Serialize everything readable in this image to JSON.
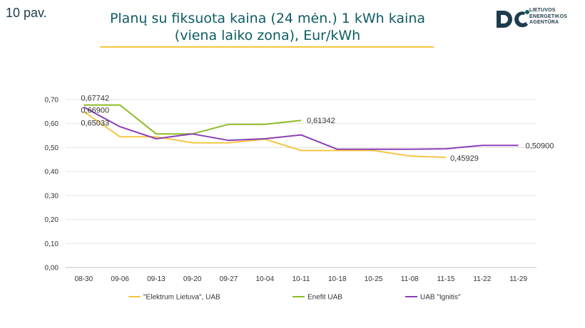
{
  "page_number": "10 pav.",
  "logo": {
    "line1": "LIETUVOS",
    "line2": "ENERGETIKOS",
    "line3": "AGENTŪRA",
    "color": "#1f3b4d"
  },
  "chart_data": {
    "type": "line",
    "title_line1": "Planų su fiksuota kaina (24 mėn.) 1 kWh kaina",
    "title_line2": "(viena laiko zona), Eur/kWh",
    "categories": [
      "08-30",
      "09-06",
      "09-13",
      "09-20",
      "09-27",
      "10-04",
      "10-11",
      "10-18",
      "10-25",
      "11-08",
      "11-15",
      "11-22",
      "11-29"
    ],
    "y_ticks": [
      "0,00",
      "0,10",
      "0,20",
      "0,30",
      "0,40",
      "0,50",
      "0,60",
      "0,70"
    ],
    "ylim": [
      0,
      0.7
    ],
    "grid": true,
    "legend_position": "bottom",
    "series": [
      {
        "name": "\"Elektrum Lietuva\", UAB",
        "color": "#f5c542",
        "values": [
          0.65033,
          0.545,
          0.545,
          0.52,
          0.52,
          0.535,
          0.488,
          0.488,
          0.488,
          0.465,
          0.45929,
          null,
          null
        ],
        "labels": [
          {
            "index": 0,
            "text": "0,65033"
          },
          {
            "index": 10,
            "text": "0,45929"
          }
        ]
      },
      {
        "name": "Enefit UAB",
        "color": "#8dbb25",
        "values": [
          0.67742,
          0.67742,
          0.557,
          0.557,
          0.597,
          0.597,
          0.61342,
          null,
          null,
          null,
          null,
          null,
          null
        ],
        "labels": [
          {
            "index": 0,
            "text": "0,67742"
          },
          {
            "index": 6,
            "text": "0,61342"
          }
        ]
      },
      {
        "name": "UAB \"Ignitis\"",
        "color": "#8b3fb5",
        "values": [
          0.669,
          0.587,
          0.537,
          0.557,
          0.53,
          0.537,
          0.553,
          0.493,
          0.493,
          0.493,
          0.495,
          0.509,
          0.509
        ],
        "labels": [
          {
            "index": 0,
            "text": "0,66900"
          },
          {
            "index": 12,
            "text": "0,50900"
          }
        ]
      }
    ]
  }
}
